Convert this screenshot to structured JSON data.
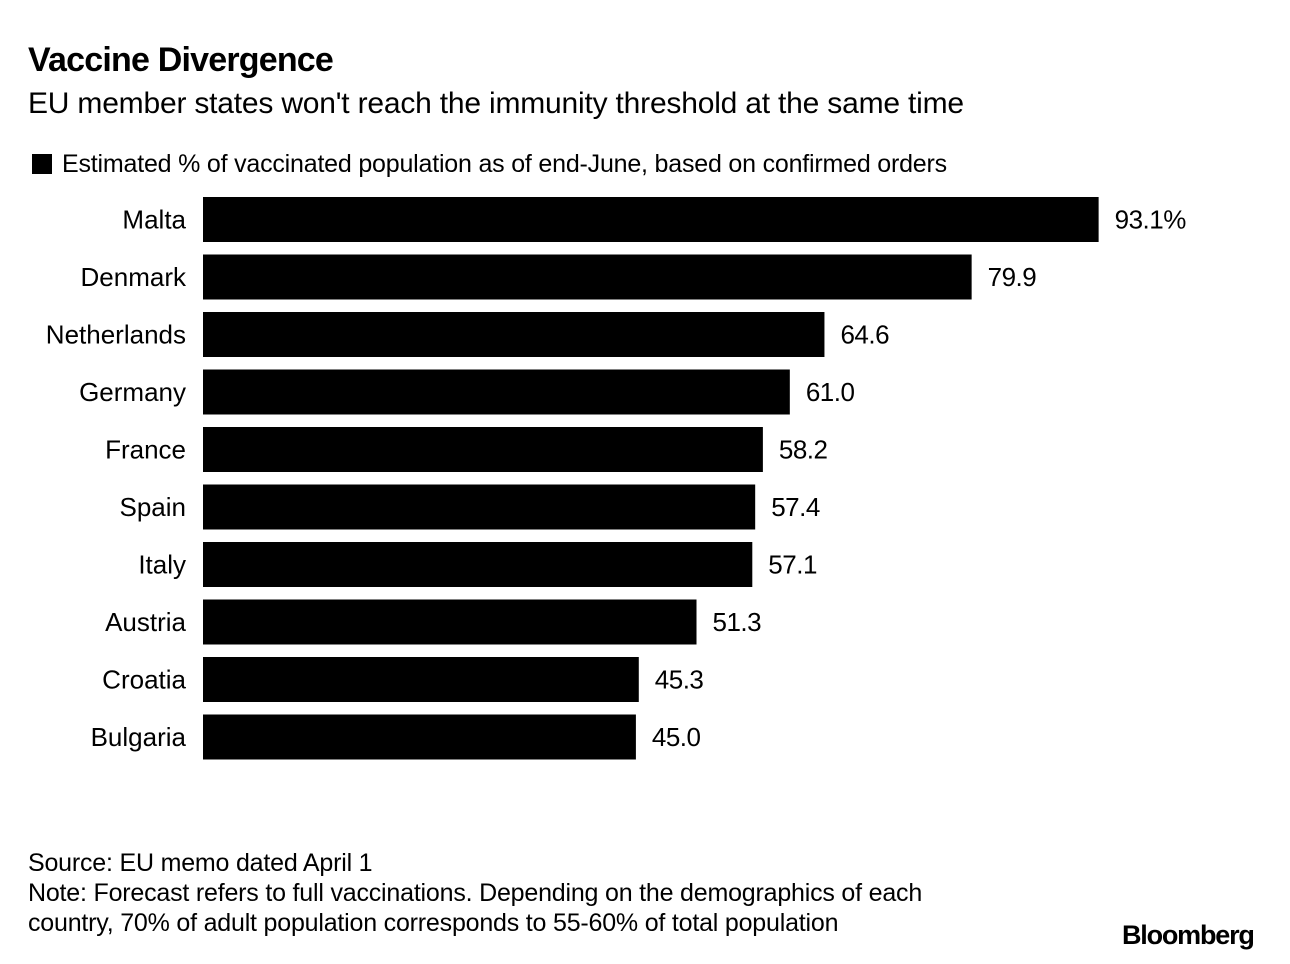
{
  "chart_data": {
    "type": "bar",
    "orientation": "horizontal",
    "title": "Vaccine Divergence",
    "subtitle": "EU member states won't reach the immunity threshold at the same time",
    "legend": [
      {
        "label": "Estimated % of vaccinated population as of end-June, based on confirmed orders",
        "color": "#000000"
      }
    ],
    "categories": [
      "Malta",
      "Denmark",
      "Netherlands",
      "Germany",
      "France",
      "Spain",
      "Italy",
      "Austria",
      "Croatia",
      "Bulgaria"
    ],
    "values": [
      93.1,
      79.9,
      64.6,
      61.0,
      58.2,
      57.4,
      57.1,
      51.3,
      45.3,
      45.0
    ],
    "value_labels": [
      "93.1%",
      "79.9",
      "64.6",
      "61.0",
      "58.2",
      "57.4",
      "57.1",
      "51.3",
      "45.3",
      "45.0"
    ],
    "xlim": [
      0,
      100
    ],
    "xlabel": "",
    "ylabel": "",
    "grid": false,
    "bar_color": "#000000"
  },
  "footer": {
    "source": "Source: EU memo dated April 1",
    "note_line1": "Note: Forecast refers to full vaccinations. Depending on the demographics of each",
    "note_line2": "country, 70% of adult population corresponds to 55-60% of total population"
  },
  "logo": "Bloomberg"
}
